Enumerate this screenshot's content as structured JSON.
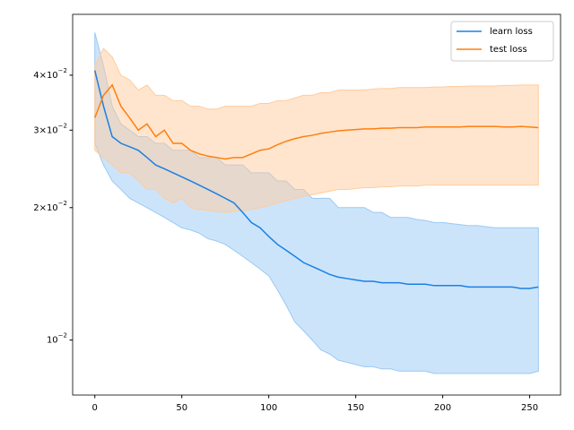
{
  "chart_data": {
    "type": "line",
    "log_y": true,
    "legend": "upper right",
    "x": [
      0,
      5,
      10,
      15,
      20,
      25,
      30,
      35,
      40,
      45,
      50,
      55,
      60,
      65,
      70,
      75,
      80,
      85,
      90,
      95,
      100,
      105,
      110,
      115,
      120,
      125,
      130,
      135,
      140,
      145,
      150,
      155,
      160,
      165,
      170,
      175,
      180,
      185,
      190,
      195,
      200,
      205,
      210,
      215,
      220,
      225,
      230,
      235,
      240,
      245,
      250,
      255
    ],
    "xlim": [
      -12.75,
      267.75
    ],
    "xticks": [
      0,
      50,
      100,
      150,
      200,
      250
    ],
    "ylim": [
      0.0075,
      0.055
    ],
    "yticks": [
      {
        "value": 0.01,
        "label": "10−2"
      },
      {
        "value": 0.02,
        "label": "2×10−2"
      },
      {
        "value": 0.03,
        "label": "3×10−2"
      },
      {
        "value": 0.04,
        "label": "4×10−2"
      }
    ],
    "series": [
      {
        "name": "learn loss",
        "color": "#1a80e5",
        "band_color": "#99c9f5",
        "values": [
          0.041,
          0.034,
          0.029,
          0.028,
          0.0275,
          0.027,
          0.026,
          0.025,
          0.0245,
          0.024,
          0.0235,
          0.023,
          0.0225,
          0.022,
          0.0215,
          0.021,
          0.0205,
          0.0195,
          0.0185,
          0.018,
          0.0172,
          0.0165,
          0.016,
          0.0155,
          0.015,
          0.0147,
          0.0144,
          0.0141,
          0.0139,
          0.0138,
          0.0137,
          0.0136,
          0.0136,
          0.0135,
          0.0135,
          0.0135,
          0.0134,
          0.0134,
          0.0134,
          0.0133,
          0.0133,
          0.0133,
          0.0133,
          0.0132,
          0.0132,
          0.0132,
          0.0132,
          0.0132,
          0.0132,
          0.0131,
          0.0131,
          0.0132
        ],
        "upper": [
          0.05,
          0.042,
          0.034,
          0.031,
          0.03,
          0.029,
          0.029,
          0.028,
          0.028,
          0.027,
          0.027,
          0.027,
          0.026,
          0.026,
          0.026,
          0.025,
          0.025,
          0.025,
          0.024,
          0.024,
          0.024,
          0.023,
          0.023,
          0.022,
          0.022,
          0.021,
          0.021,
          0.021,
          0.02,
          0.02,
          0.02,
          0.02,
          0.0195,
          0.0195,
          0.019,
          0.019,
          0.019,
          0.0188,
          0.0187,
          0.0185,
          0.0185,
          0.0184,
          0.0183,
          0.0182,
          0.0182,
          0.0181,
          0.018,
          0.018,
          0.018,
          0.018,
          0.018,
          0.018
        ],
        "lower": [
          0.028,
          0.025,
          0.023,
          0.022,
          0.021,
          0.0205,
          0.02,
          0.0195,
          0.019,
          0.0185,
          0.018,
          0.0178,
          0.0175,
          0.017,
          0.0168,
          0.0165,
          0.016,
          0.0155,
          0.015,
          0.0145,
          0.014,
          0.013,
          0.012,
          0.011,
          0.0105,
          0.01,
          0.0095,
          0.0093,
          0.009,
          0.0089,
          0.0088,
          0.0087,
          0.0087,
          0.0086,
          0.0086,
          0.0085,
          0.0085,
          0.0085,
          0.0085,
          0.0084,
          0.0084,
          0.0084,
          0.0084,
          0.0084,
          0.0084,
          0.0084,
          0.0084,
          0.0084,
          0.0084,
          0.0084,
          0.0084,
          0.0085
        ]
      },
      {
        "name": "test loss",
        "color": "#ff7f0e",
        "band_color": "#ffcc9e",
        "values": [
          0.032,
          0.036,
          0.038,
          0.034,
          0.032,
          0.03,
          0.031,
          0.029,
          0.03,
          0.028,
          0.028,
          0.027,
          0.0265,
          0.0262,
          0.026,
          0.0258,
          0.026,
          0.026,
          0.0265,
          0.027,
          0.0272,
          0.0278,
          0.0283,
          0.0287,
          0.029,
          0.0292,
          0.0295,
          0.0297,
          0.0299,
          0.03,
          0.0301,
          0.0302,
          0.0302,
          0.0303,
          0.0303,
          0.0304,
          0.0304,
          0.0304,
          0.0305,
          0.0305,
          0.0305,
          0.0305,
          0.0305,
          0.0306,
          0.0306,
          0.0306,
          0.0306,
          0.0305,
          0.0305,
          0.0306,
          0.0305,
          0.0304
        ],
        "upper": [
          0.042,
          0.046,
          0.044,
          0.04,
          0.039,
          0.037,
          0.038,
          0.036,
          0.036,
          0.035,
          0.035,
          0.034,
          0.034,
          0.0335,
          0.0335,
          0.034,
          0.034,
          0.034,
          0.034,
          0.0345,
          0.0345,
          0.035,
          0.035,
          0.0355,
          0.036,
          0.036,
          0.0365,
          0.0365,
          0.037,
          0.037,
          0.037,
          0.037,
          0.0372,
          0.0373,
          0.0373,
          0.0375,
          0.0375,
          0.0375,
          0.0375,
          0.0376,
          0.0376,
          0.0377,
          0.0377,
          0.0378,
          0.0378,
          0.0378,
          0.0378,
          0.0379,
          0.0379,
          0.038,
          0.038,
          0.038
        ],
        "lower": [
          0.027,
          0.026,
          0.025,
          0.024,
          0.024,
          0.023,
          0.022,
          0.022,
          0.021,
          0.0205,
          0.021,
          0.02,
          0.0198,
          0.0197,
          0.0196,
          0.0195,
          0.0196,
          0.0197,
          0.0198,
          0.02,
          0.0202,
          0.0205,
          0.0207,
          0.021,
          0.0212,
          0.0214,
          0.0216,
          0.0218,
          0.022,
          0.022,
          0.0221,
          0.0222,
          0.0222,
          0.0223,
          0.0223,
          0.0224,
          0.0224,
          0.0224,
          0.0225,
          0.0225,
          0.0225,
          0.0225,
          0.0225,
          0.0225,
          0.0225,
          0.0225,
          0.0225,
          0.0225,
          0.0225,
          0.0225,
          0.0225,
          0.0225
        ]
      }
    ]
  }
}
